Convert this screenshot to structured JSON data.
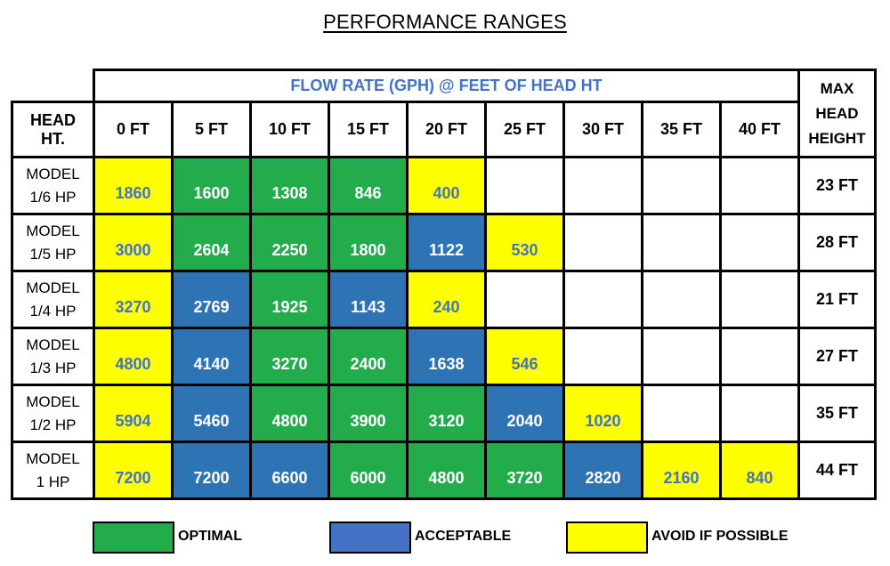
{
  "title": "PERFORMANCE RANGES",
  "flow_header": "FLOW RATE (GPH) @ FEET OF HEAD HT",
  "head_header": [
    "HEAD",
    "HT."
  ],
  "max_header": [
    "MAX",
    "HEAD",
    "HEIGHT"
  ],
  "columns": [
    "0 FT",
    "5 FT",
    "10 FT",
    "15 FT",
    "20 FT",
    "25 FT",
    "30 FT",
    "35 FT",
    "40 FT"
  ],
  "rows": [
    {
      "model": "MODEL",
      "hp": "1/6 HP",
      "max": "23 FT",
      "cells": [
        {
          "v": "1860",
          "c": "avoid"
        },
        {
          "v": "1600",
          "c": "optimal"
        },
        {
          "v": "1308",
          "c": "optimal"
        },
        {
          "v": "846",
          "c": "optimal"
        },
        {
          "v": "400",
          "c": "avoid"
        },
        {
          "v": "",
          "c": "none"
        },
        {
          "v": "",
          "c": "none"
        },
        {
          "v": "",
          "c": "none"
        },
        {
          "v": "",
          "c": "none"
        }
      ]
    },
    {
      "model": "MODEL",
      "hp": "1/5 HP",
      "max": "28 FT",
      "cells": [
        {
          "v": "3000",
          "c": "avoid"
        },
        {
          "v": "2604",
          "c": "optimal"
        },
        {
          "v": "2250",
          "c": "optimal"
        },
        {
          "v": "1800",
          "c": "optimal"
        },
        {
          "v": "1122",
          "c": "acceptable"
        },
        {
          "v": "530",
          "c": "avoid"
        },
        {
          "v": "",
          "c": "none"
        },
        {
          "v": "",
          "c": "none"
        },
        {
          "v": "",
          "c": "none"
        }
      ]
    },
    {
      "model": "MODEL",
      "hp": "1/4 HP",
      "max": "21 FT",
      "cells": [
        {
          "v": "3270",
          "c": "avoid"
        },
        {
          "v": "2769",
          "c": "acceptable"
        },
        {
          "v": "1925",
          "c": "optimal"
        },
        {
          "v": "1143",
          "c": "acceptable"
        },
        {
          "v": "240",
          "c": "avoid"
        },
        {
          "v": "",
          "c": "none"
        },
        {
          "v": "",
          "c": "none"
        },
        {
          "v": "",
          "c": "none"
        },
        {
          "v": "",
          "c": "none"
        }
      ]
    },
    {
      "model": "MODEL",
      "hp": "1/3 HP",
      "max": "27 FT",
      "cells": [
        {
          "v": "4800",
          "c": "avoid"
        },
        {
          "v": "4140",
          "c": "acceptable"
        },
        {
          "v": "3270",
          "c": "optimal"
        },
        {
          "v": "2400",
          "c": "optimal"
        },
        {
          "v": "1638",
          "c": "acceptable"
        },
        {
          "v": "546",
          "c": "avoid"
        },
        {
          "v": "",
          "c": "none"
        },
        {
          "v": "",
          "c": "none"
        },
        {
          "v": "",
          "c": "none"
        }
      ]
    },
    {
      "model": "MODEL",
      "hp": "1/2 HP",
      "max": "35 FT",
      "cells": [
        {
          "v": "5904",
          "c": "avoid"
        },
        {
          "v": "5460",
          "c": "acceptable"
        },
        {
          "v": "4800",
          "c": "optimal"
        },
        {
          "v": "3900",
          "c": "optimal"
        },
        {
          "v": "3120",
          "c": "optimal"
        },
        {
          "v": "2040",
          "c": "acceptable"
        },
        {
          "v": "1020",
          "c": "avoid"
        },
        {
          "v": "",
          "c": "none"
        },
        {
          "v": "",
          "c": "none"
        }
      ]
    },
    {
      "model": "MODEL",
      "hp": "1 HP",
      "max": "44 FT",
      "cells": [
        {
          "v": "7200",
          "c": "avoid"
        },
        {
          "v": "7200",
          "c": "acceptable"
        },
        {
          "v": "6600",
          "c": "acceptable"
        },
        {
          "v": "6000",
          "c": "optimal"
        },
        {
          "v": "4800",
          "c": "optimal"
        },
        {
          "v": "3720",
          "c": "optimal"
        },
        {
          "v": "2820",
          "c": "acceptable"
        },
        {
          "v": "2160",
          "c": "avoid"
        },
        {
          "v": "840",
          "c": "avoid"
        }
      ]
    }
  ],
  "legend": [
    {
      "label": "OPTIMAL",
      "color": "#22ac4c"
    },
    {
      "label": "ACCEPTABLE",
      "color": "#4472c4"
    },
    {
      "label": "AVOID IF POSSIBLE",
      "color": "#ffff00"
    }
  ],
  "colors": {
    "optimal": "#22ac4c",
    "acceptable": "#2e74b5",
    "avoid": "#ffff00",
    "value_text_on_yellow": "#4472c4"
  }
}
